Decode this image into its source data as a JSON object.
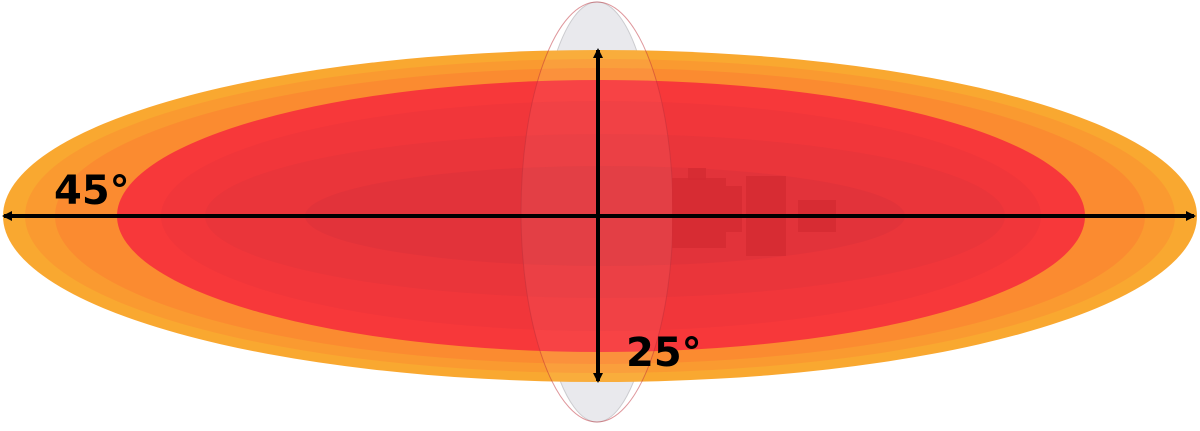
{
  "labels": {
    "horizontal_beamwidth": "45°",
    "vertical_beamwidth": "25°"
  },
  "colors": {
    "outer_edge": "#f9a830",
    "orange": "#fb8b30",
    "red": "#f7383a",
    "core": "#e0333a",
    "dish": "#e6e6ea",
    "arrow": "#000000"
  },
  "icon": "antenna-device"
}
